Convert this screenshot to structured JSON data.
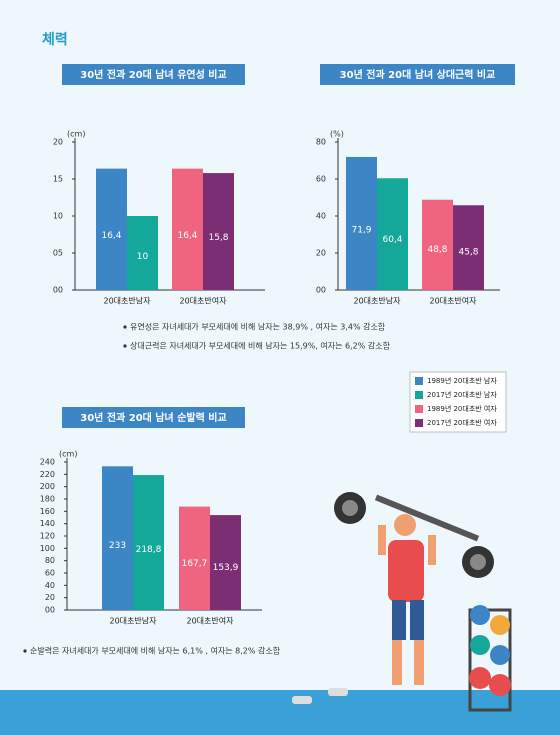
{
  "title": "체력",
  "legend": [
    {
      "name": "1989년 20대초반 남자",
      "color": "#3d86c6"
    },
    {
      "name": "2017년 20대초반 남자",
      "color": "#14a89a"
    },
    {
      "name": "1989년 20대초반 여자",
      "color": "#ef6580"
    },
    {
      "name": "2017년 20대초반 여자",
      "color": "#7b2e73"
    }
  ],
  "notes": [
    "유연성은 자녀세대가 부모세대에 비해 남자는 38,9% , 여자는 3,4% 감소함",
    "상대근력은 자녀세대가 부모세대에 비해 남자는 15,9%, 여자는 6,2% 감소함",
    "순발력은  자녀세대가 부모세대에 비해 남자는 6,1% , 여자는 8,2% 감소함"
  ],
  "chart_data": [
    {
      "type": "bar",
      "title": "30년 전과 20대 남녀 유연성 비교",
      "y_label": "(cm)",
      "categories": [
        "20대초반남자",
        "20대초반여자"
      ],
      "series": [
        {
          "values": [
            16.4,
            null
          ],
          "value_labels": [
            "16,4",
            null
          ]
        },
        {
          "values": [
            10,
            null
          ],
          "value_labels": [
            "10",
            null
          ]
        },
        {
          "values": [
            null,
            16.4
          ],
          "value_labels": [
            null,
            "16,4"
          ]
        },
        {
          "values": [
            null,
            15.8
          ],
          "value_labels": [
            null,
            "15,8"
          ]
        }
      ],
      "ylim": [
        0,
        20
      ],
      "yticks": [
        {
          "value": 0,
          "label": "00"
        },
        {
          "value": 5,
          "label": "05"
        },
        10,
        15,
        20
      ]
    },
    {
      "type": "bar",
      "title": "30년 전과 20대 남녀 상대근력 비교",
      "y_label": "(%)",
      "categories": [
        "20대초반남자",
        "20대초반여자"
      ],
      "series": [
        {
          "values": [
            71.9,
            null
          ],
          "value_labels": [
            "71,9",
            null
          ]
        },
        {
          "values": [
            60.4,
            null
          ],
          "value_labels": [
            "60,4",
            null
          ]
        },
        {
          "values": [
            null,
            48.8
          ],
          "value_labels": [
            null,
            "48,8"
          ]
        },
        {
          "values": [
            null,
            45.8
          ],
          "value_labels": [
            null,
            "45,8"
          ]
        }
      ],
      "ylim": [
        0,
        80
      ],
      "yticks": [
        {
          "value": 0,
          "label": "00"
        },
        20,
        40,
        60,
        80
      ]
    },
    {
      "type": "bar",
      "title": "30년 전과 20대 남녀 순발력 비교",
      "y_label": "(cm)",
      "categories": [
        "20대초반남자",
        "20대초반여자"
      ],
      "series": [
        {
          "values": [
            233,
            null
          ]
        },
        {
          "values": [
            218.8,
            null
          ],
          "value_labels": [
            "218,8",
            null
          ]
        },
        {
          "values": [
            null,
            167.7
          ],
          "value_labels": [
            null,
            "167,7"
          ]
        },
        {
          "values": [
            null,
            153.9
          ],
          "value_labels": [
            null,
            "153,9"
          ]
        }
      ],
      "ylim": [
        0,
        240
      ],
      "yticks": [
        {
          "value": 0,
          "label": "00"
        },
        20,
        40,
        60,
        80,
        100,
        120,
        140,
        160,
        180,
        200,
        220,
        240
      ]
    }
  ]
}
